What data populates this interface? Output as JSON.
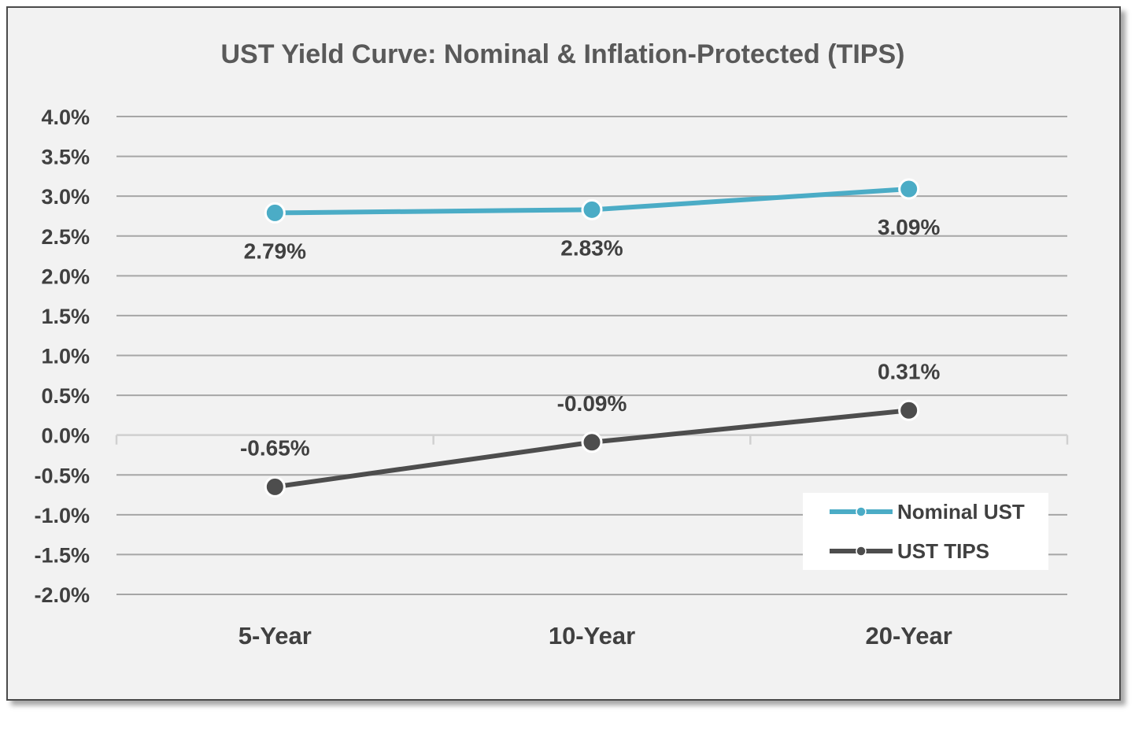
{
  "chart_data": {
    "type": "line",
    "title": "UST Yield Curve: Nominal & Inflation-Protected (TIPS)",
    "xlabel": "",
    "ylabel": "",
    "categories": [
      "5-Year",
      "10-Year",
      "20-Year"
    ],
    "ylim": [
      -2.0,
      4.0
    ],
    "yticks": [
      4.0,
      3.5,
      3.0,
      2.5,
      2.0,
      1.5,
      1.0,
      0.5,
      0.0,
      -0.5,
      -1.0,
      -1.5,
      -2.0
    ],
    "ytick_labels": [
      "4.0%",
      "3.5%",
      "3.0%",
      "2.5%",
      "2.0%",
      "1.5%",
      "1.0%",
      "0.5%",
      "0.0%",
      "-0.5%",
      "-1.0%",
      "-1.5%",
      "-2.0%"
    ],
    "grid": true,
    "legend_position": "bottom-right",
    "series": [
      {
        "name": "Nominal UST",
        "values": [
          2.79,
          2.83,
          3.09
        ],
        "labels": [
          "2.79%",
          "2.83%",
          "3.09%"
        ],
        "label_position": "below",
        "color": "#4bacc6"
      },
      {
        "name": "UST TIPS",
        "values": [
          -0.65,
          -0.09,
          0.31
        ],
        "labels": [
          "-0.65%",
          "-0.09%",
          "0.31%"
        ],
        "label_position": "above",
        "color": "#4d4d4d"
      }
    ]
  }
}
